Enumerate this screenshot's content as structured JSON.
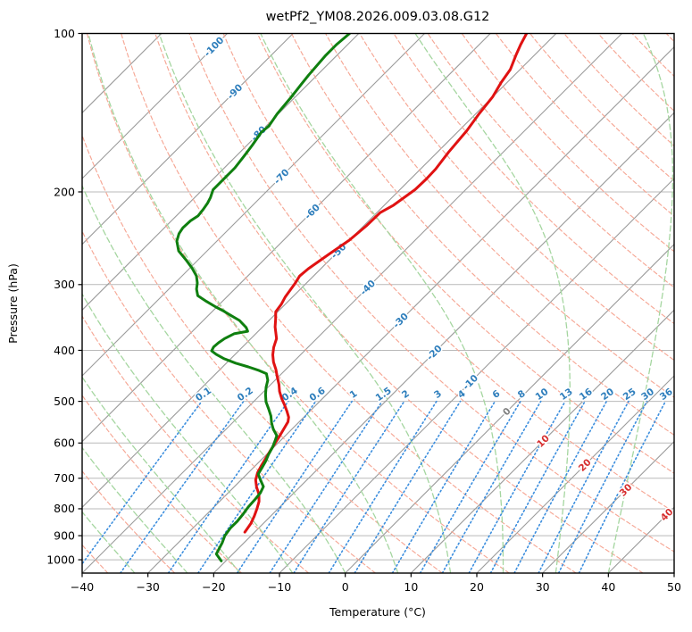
{
  "chart_data": {
    "type": "line",
    "title": "wetPf2_YM08.2026.009.03.08.G12",
    "xlabel": "Temperature (°C)",
    "ylabel": "Pressure (hPa)",
    "xlim": [
      -40,
      50
    ],
    "pressure_top": 100,
    "pressure_bottom": 1060,
    "skew_degrees": 45,
    "grid": true,
    "x_ticks": [
      -40,
      -30,
      -20,
      -10,
      0,
      10,
      20,
      30,
      40,
      50
    ],
    "y_ticks": [
      100,
      200,
      300,
      400,
      500,
      600,
      700,
      800,
      900,
      1000
    ],
    "isotherms": {
      "start": -110,
      "end": 50,
      "step": 10,
      "color": "#9b9b9b"
    },
    "isotherm_labels": [
      {
        "t": -100,
        "p": 106
      },
      {
        "t": -90,
        "p": 129
      },
      {
        "t": -80,
        "p": 155
      },
      {
        "t": -70,
        "p": 187
      },
      {
        "t": -60,
        "p": 218
      },
      {
        "t": -50,
        "p": 259
      },
      {
        "t": -40,
        "p": 304
      },
      {
        "t": -30,
        "p": 351
      },
      {
        "t": -20,
        "p": 404
      },
      {
        "t": -10,
        "p": 460
      },
      {
        "t": 0,
        "p": 523
      },
      {
        "t": 10,
        "p": 595
      },
      {
        "t": 20,
        "p": 661
      },
      {
        "t": 30,
        "p": 737
      },
      {
        "t": 40,
        "p": 821
      }
    ],
    "isotherm_label_colors": {
      "negative": "#2e7ebc",
      "zero": "#7f7f7f",
      "positive": "#d62f2f"
    },
    "dry_adiabats": {
      "start": -40,
      "end": 200,
      "step": 10,
      "color": "#f6a795"
    },
    "moist_adiabats": {
      "start": -40,
      "end": 40,
      "step": 8,
      "color": "#a5d6a0"
    },
    "mixing_ratio": {
      "values_g_kg": [
        0.1,
        0.2,
        0.4,
        0.6,
        1,
        1.5,
        2,
        3,
        4,
        6,
        8,
        10,
        13,
        16,
        20,
        25,
        30,
        36
      ],
      "label_pressure": 490,
      "line_top_pressure": 500,
      "color": "#3c8ede",
      "label_color": "#2e7ebc"
    },
    "series": [
      {
        "name": "temperature",
        "color": "#e01212",
        "points_p_t": [
          [
            886,
            -21.5
          ],
          [
            853,
            -21.9
          ],
          [
            826,
            -22.5
          ],
          [
            800,
            -23.2
          ],
          [
            775,
            -24.0
          ],
          [
            751,
            -25.1
          ],
          [
            727,
            -26.6
          ],
          [
            705,
            -27.8
          ],
          [
            683,
            -28.6
          ],
          [
            662,
            -29.1
          ],
          [
            621,
            -30.0
          ],
          [
            583,
            -30.8
          ],
          [
            547,
            -31.7
          ],
          [
            536,
            -32.3
          ],
          [
            522,
            -33.5
          ],
          [
            509,
            -34.7
          ],
          [
            494,
            -36.2
          ],
          [
            479,
            -37.6
          ],
          [
            464,
            -38.8
          ],
          [
            450,
            -40.1
          ],
          [
            435,
            -41.5
          ],
          [
            421,
            -43.0
          ],
          [
            408,
            -44.2
          ],
          [
            395,
            -45.2
          ],
          [
            380,
            -46.1
          ],
          [
            361,
            -48.1
          ],
          [
            349,
            -49.2
          ],
          [
            338,
            -50.3
          ],
          [
            327,
            -50.6
          ],
          [
            317,
            -51.1
          ],
          [
            298,
            -51.7
          ],
          [
            289,
            -52.1
          ],
          [
            280,
            -51.9
          ],
          [
            263,
            -51.0
          ],
          [
            247,
            -50.0
          ],
          [
            232,
            -49.6
          ],
          [
            219,
            -49.5
          ],
          [
            212,
            -48.6
          ],
          [
            198,
            -47.7
          ],
          [
            189,
            -47.6
          ],
          [
            181,
            -47.7
          ],
          [
            168,
            -48.3
          ],
          [
            153,
            -48.8
          ],
          [
            142,
            -49.5
          ],
          [
            132,
            -50.0
          ],
          [
            124,
            -50.9
          ],
          [
            117,
            -51.5
          ],
          [
            110,
            -52.8
          ],
          [
            105,
            -53.7
          ],
          [
            100,
            -54.5
          ]
        ]
      },
      {
        "name": "dewpoint",
        "color": "#0f7f0f",
        "points_p_t": [
          [
            1005,
            -20.7
          ],
          [
            975,
            -22.5
          ],
          [
            929,
            -23.3
          ],
          [
            900,
            -24.0
          ],
          [
            871,
            -24.3
          ],
          [
            845,
            -24.3
          ],
          [
            819,
            -24.5
          ],
          [
            794,
            -24.8
          ],
          [
            769,
            -24.9
          ],
          [
            746,
            -25.1
          ],
          [
            726,
            -25.6
          ],
          [
            706,
            -27.0
          ],
          [
            687,
            -28.3
          ],
          [
            668,
            -28.7
          ],
          [
            650,
            -29.1
          ],
          [
            631,
            -29.7
          ],
          [
            611,
            -30.2
          ],
          [
            594,
            -30.8
          ],
          [
            581,
            -31.3
          ],
          [
            565,
            -32.8
          ],
          [
            550,
            -34.0
          ],
          [
            533,
            -35.2
          ],
          [
            517,
            -36.6
          ],
          [
            501,
            -38.1
          ],
          [
            485,
            -39.3
          ],
          [
            470,
            -40.3
          ],
          [
            456,
            -41.1
          ],
          [
            443,
            -42.3
          ],
          [
            437,
            -43.9
          ],
          [
            430,
            -46.1
          ],
          [
            423,
            -48.6
          ],
          [
            415,
            -51.0
          ],
          [
            407,
            -52.9
          ],
          [
            401,
            -54.1
          ],
          [
            394,
            -54.4
          ],
          [
            387,
            -54.3
          ],
          [
            380,
            -54.0
          ],
          [
            372,
            -53.3
          ],
          [
            368,
            -51.6
          ],
          [
            362,
            -52.4
          ],
          [
            351,
            -54.5
          ],
          [
            344,
            -56.4
          ],
          [
            337,
            -58.3
          ],
          [
            331,
            -60.1
          ],
          [
            323,
            -62.4
          ],
          [
            315,
            -64.6
          ],
          [
            306,
            -65.8
          ],
          [
            298,
            -66.6
          ],
          [
            289,
            -67.8
          ],
          [
            279,
            -69.7
          ],
          [
            269,
            -71.9
          ],
          [
            259,
            -74.3
          ],
          [
            248,
            -76.1
          ],
          [
            240,
            -76.9
          ],
          [
            234,
            -77.2
          ],
          [
            227,
            -77.1
          ],
          [
            222,
            -76.7
          ],
          [
            216,
            -76.9
          ],
          [
            210,
            -77.2
          ],
          [
            205,
            -77.6
          ],
          [
            198,
            -78.4
          ],
          [
            187,
            -78.4
          ],
          [
            180,
            -78.4
          ],
          [
            171,
            -78.8
          ],
          [
            163,
            -79.2
          ],
          [
            154,
            -79.8
          ],
          [
            150,
            -79.6
          ],
          [
            142,
            -80.2
          ],
          [
            132,
            -80.6
          ],
          [
            125,
            -81.0
          ],
          [
            120,
            -81.3
          ],
          [
            110,
            -81.7
          ],
          [
            105,
            -81.7
          ],
          [
            100,
            -81.4
          ]
        ]
      }
    ],
    "pressure_grid_color": "#b9b9b9",
    "spine_color": "#000000"
  }
}
